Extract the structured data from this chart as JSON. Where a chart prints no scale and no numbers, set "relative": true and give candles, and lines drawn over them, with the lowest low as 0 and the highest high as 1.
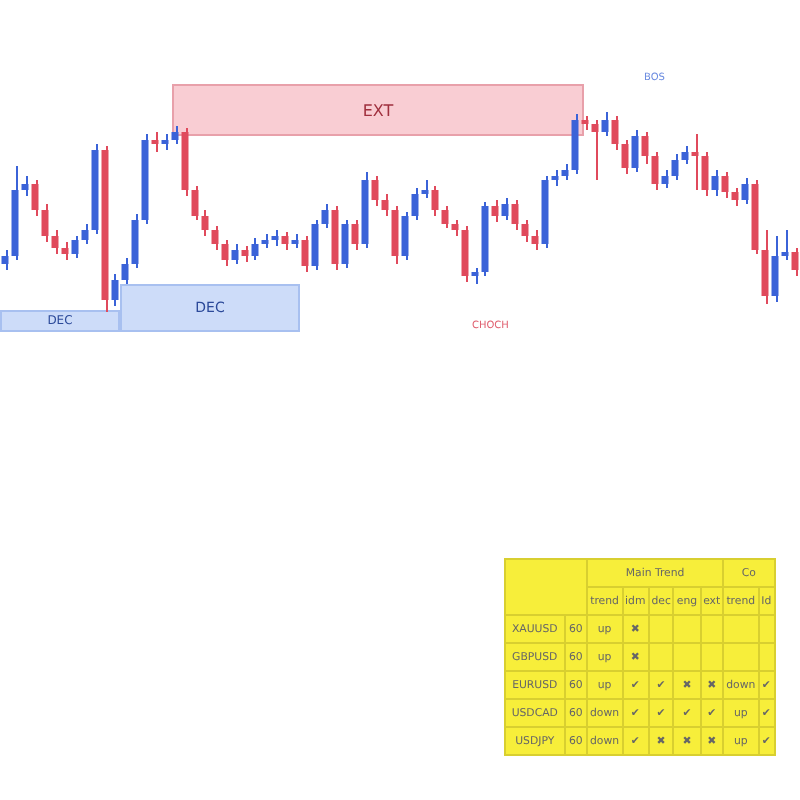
{
  "chart_data": [
    {
      "type": "candlestick",
      "relative": true,
      "categories": [
        null,
        null,
        null,
        null,
        null,
        null,
        null,
        null,
        null,
        null,
        null,
        null,
        null,
        null,
        null,
        null,
        null,
        null,
        null,
        null,
        null,
        null,
        null,
        null,
        null,
        null,
        null,
        null,
        null,
        null,
        null,
        null,
        null,
        null,
        null,
        null,
        null,
        null,
        null,
        null,
        null,
        null,
        null,
        null,
        null,
        null,
        null,
        null,
        null,
        null,
        null,
        null,
        null,
        null,
        null,
        null,
        null,
        null,
        null,
        null,
        null,
        null,
        null,
        null,
        null,
        null,
        null,
        null,
        null,
        null,
        null,
        null,
        null,
        null,
        null,
        null,
        null,
        null,
        null,
        null
      ],
      "ohlc": [
        [
          0.24,
          0.31,
          0.21,
          0.28
        ],
        [
          0.28,
          0.73,
          0.26,
          0.61
        ],
        [
          0.61,
          0.68,
          0.58,
          0.64
        ],
        [
          0.64,
          0.66,
          0.48,
          0.51
        ],
        [
          0.51,
          0.54,
          0.35,
          0.38
        ],
        [
          0.38,
          0.41,
          0.29,
          0.32
        ],
        [
          0.32,
          0.35,
          0.26,
          0.29
        ],
        [
          0.29,
          0.38,
          0.27,
          0.36
        ],
        [
          0.36,
          0.44,
          0.34,
          0.41
        ],
        [
          0.41,
          0.84,
          0.39,
          0.81
        ],
        [
          0.81,
          0.83,
          0.0,
          0.06
        ],
        [
          0.06,
          0.19,
          0.03,
          0.16
        ],
        [
          0.16,
          0.27,
          0.14,
          0.24
        ],
        [
          0.24,
          0.49,
          0.22,
          0.46
        ],
        [
          0.46,
          0.89,
          0.44,
          0.86
        ],
        [
          0.86,
          0.9,
          0.8,
          0.84
        ],
        [
          0.84,
          0.89,
          0.81,
          0.86
        ],
        [
          0.86,
          0.93,
          0.84,
          0.9
        ],
        [
          0.9,
          0.92,
          0.58,
          0.61
        ],
        [
          0.61,
          0.63,
          0.46,
          0.48
        ],
        [
          0.48,
          0.51,
          0.38,
          0.41
        ],
        [
          0.41,
          0.43,
          0.31,
          0.34
        ],
        [
          0.34,
          0.36,
          0.23,
          0.26
        ],
        [
          0.26,
          0.34,
          0.24,
          0.31
        ],
        [
          0.31,
          0.33,
          0.25,
          0.28
        ],
        [
          0.28,
          0.37,
          0.26,
          0.34
        ],
        [
          0.34,
          0.39,
          0.32,
          0.36
        ],
        [
          0.36,
          0.41,
          0.33,
          0.38
        ],
        [
          0.38,
          0.4,
          0.31,
          0.34
        ],
        [
          0.34,
          0.39,
          0.32,
          0.36
        ],
        [
          0.36,
          0.38,
          0.2,
          0.23
        ],
        [
          0.23,
          0.46,
          0.21,
          0.44
        ],
        [
          0.44,
          0.54,
          0.42,
          0.51
        ],
        [
          0.51,
          0.53,
          0.21,
          0.24
        ],
        [
          0.24,
          0.46,
          0.22,
          0.44
        ],
        [
          0.44,
          0.46,
          0.31,
          0.34
        ],
        [
          0.34,
          0.7,
          0.32,
          0.66
        ],
        [
          0.66,
          0.68,
          0.53,
          0.56
        ],
        [
          0.56,
          0.59,
          0.48,
          0.51
        ],
        [
          0.51,
          0.53,
          0.24,
          0.28
        ],
        [
          0.28,
          0.5,
          0.26,
          0.48
        ],
        [
          0.48,
          0.62,
          0.46,
          0.59
        ],
        [
          0.59,
          0.66,
          0.57,
          0.61
        ],
        [
          0.61,
          0.63,
          0.48,
          0.51
        ],
        [
          0.51,
          0.53,
          0.42,
          0.44
        ],
        [
          0.44,
          0.46,
          0.38,
          0.41
        ],
        [
          0.41,
          0.43,
          0.15,
          0.18
        ],
        [
          0.18,
          0.22,
          0.14,
          0.2
        ],
        [
          0.2,
          0.55,
          0.18,
          0.53
        ],
        [
          0.53,
          0.56,
          0.45,
          0.48
        ],
        [
          0.48,
          0.57,
          0.46,
          0.54
        ],
        [
          0.54,
          0.56,
          0.41,
          0.44
        ],
        [
          0.44,
          0.46,
          0.35,
          0.38
        ],
        [
          0.38,
          0.41,
          0.31,
          0.34
        ],
        [
          0.34,
          0.68,
          0.32,
          0.66
        ],
        [
          0.66,
          0.71,
          0.63,
          0.68
        ],
        [
          0.68,
          0.74,
          0.66,
          0.71
        ],
        [
          0.71,
          0.99,
          0.69,
          0.96
        ],
        [
          0.96,
          0.98,
          0.91,
          0.94
        ],
        [
          0.94,
          0.96,
          0.66,
          0.9
        ],
        [
          0.9,
          1.0,
          0.88,
          0.96
        ],
        [
          0.96,
          0.98,
          0.81,
          0.84
        ],
        [
          0.84,
          0.86,
          0.69,
          0.72
        ],
        [
          0.72,
          0.91,
          0.7,
          0.88
        ],
        [
          0.88,
          0.9,
          0.74,
          0.78
        ],
        [
          0.78,
          0.8,
          0.61,
          0.64
        ],
        [
          0.64,
          0.71,
          0.62,
          0.68
        ],
        [
          0.68,
          0.79,
          0.66,
          0.76
        ],
        [
          0.76,
          0.83,
          0.74,
          0.8
        ],
        [
          0.8,
          0.89,
          0.61,
          0.78
        ],
        [
          0.78,
          0.8,
          0.58,
          0.61
        ],
        [
          0.61,
          0.71,
          0.58,
          0.68
        ],
        [
          0.68,
          0.7,
          0.57,
          0.6
        ],
        [
          0.6,
          0.62,
          0.53,
          0.56
        ],
        [
          0.56,
          0.67,
          0.54,
          0.64
        ],
        [
          0.64,
          0.66,
          0.29,
          0.31
        ],
        [
          0.31,
          0.41,
          0.04,
          0.08
        ],
        [
          0.08,
          0.38,
          0.05,
          0.28
        ],
        [
          0.28,
          0.41,
          0.26,
          0.3
        ],
        [
          0.3,
          0.32,
          0.18,
          0.21
        ]
      ],
      "colors": [
        "#3b63d8",
        "#3b63d8",
        "#3b63d8",
        "#e04a5c",
        "#e04a5c",
        "#e04a5c",
        "#e04a5c",
        "#3b63d8",
        "#3b63d8",
        "#3b63d8",
        "#e04a5c",
        "#3b63d8",
        "#3b63d8",
        "#3b63d8",
        "#3b63d8",
        "#e04a5c",
        "#3b63d8",
        "#3b63d8",
        "#e04a5c",
        "#e04a5c",
        "#e04a5c",
        "#e04a5c",
        "#e04a5c",
        "#3b63d8",
        "#e04a5c",
        "#3b63d8",
        "#3b63d8",
        "#3b63d8",
        "#e04a5c",
        "#3b63d8",
        "#e04a5c",
        "#3b63d8",
        "#3b63d8",
        "#e04a5c",
        "#3b63d8",
        "#e04a5c",
        "#3b63d8",
        "#e04a5c",
        "#e04a5c",
        "#e04a5c",
        "#3b63d8",
        "#3b63d8",
        "#3b63d8",
        "#e04a5c",
        "#e04a5c",
        "#e04a5c",
        "#e04a5c",
        "#3b63d8",
        "#3b63d8",
        "#e04a5c",
        "#3b63d8",
        "#e04a5c",
        "#e04a5c",
        "#e04a5c",
        "#3b63d8",
        "#3b63d8",
        "#3b63d8",
        "#3b63d8",
        "#e04a5c",
        "#e04a5c",
        "#3b63d8",
        "#e04a5c",
        "#e04a5c",
        "#3b63d8",
        "#e04a5c",
        "#e04a5c",
        "#3b63d8",
        "#3b63d8",
        "#3b63d8",
        "#e04a5c",
        "#e04a5c",
        "#3b63d8",
        "#e04a5c",
        "#e04a5c",
        "#3b63d8",
        "#e04a5c",
        "#e04a5c",
        "#3b63d8",
        "#3b63d8",
        "#e04a5c"
      ],
      "annotations": [
        "EXT",
        "DEC",
        "DEC",
        "BOS",
        "CHOCH"
      ]
    },
    {
      "type": "other",
      "annotations": [
        "Main Trend",
        "Co"
      ],
      "categories": [
        "trend",
        "idm",
        "dec",
        "eng",
        "ext",
        "trend",
        "Id"
      ],
      "y_categories": [
        "XAUUSD",
        "GBPUSD",
        "EURUSD",
        "USDCAD",
        "USDJPY"
      ],
      "y2_categories": [
        "60",
        "60",
        "60",
        "60",
        "60"
      ],
      "cell_labels": [
        [
          "up",
          "✖",
          null,
          null,
          null,
          null,
          null
        ],
        [
          "up",
          "✖",
          null,
          null,
          null,
          null,
          null
        ],
        [
          "up",
          "✔",
          "✔",
          "✖",
          "✖",
          "down",
          "✔"
        ],
        [
          "down",
          "✔",
          "✔",
          "✔",
          "✔",
          "up",
          "✔"
        ],
        [
          "down",
          "✔",
          "✖",
          "✖",
          "✖",
          "up",
          "✔"
        ]
      ]
    }
  ]
}
